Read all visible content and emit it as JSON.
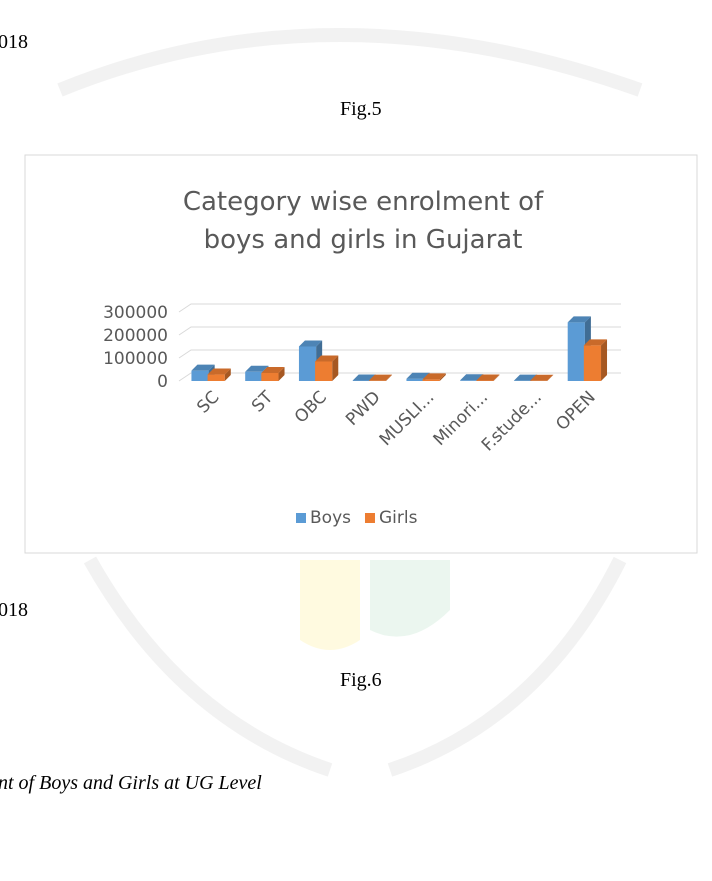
{
  "document": {
    "fragment_top": "018",
    "fig5": "Fig.5",
    "fragment_mid": "018",
    "fig6": "Fig.6",
    "caption": "nt of Boys and Girls at UG Level"
  },
  "chart_data": {
    "type": "bar",
    "title": "Category wise enrolment of boys and girls in Gujarat",
    "categories": [
      "SC",
      "ST",
      "OBC",
      "PWD",
      "MUSLI...",
      "Minori...",
      "F.stude...",
      "OPEN"
    ],
    "series": [
      {
        "name": "Boys",
        "color": "#5b9bd5",
        "values": [
          45000,
          40000,
          150000,
          2000,
          10000,
          3000,
          1500,
          255000
        ]
      },
      {
        "name": "Girls",
        "color": "#ed7d31",
        "values": [
          28000,
          35000,
          85000,
          1500,
          7000,
          2000,
          1000,
          155000
        ]
      }
    ],
    "ylim": [
      0,
      300000
    ],
    "yticks": [
      0,
      100000,
      200000,
      300000
    ],
    "grid": true,
    "legend": "bottom"
  }
}
